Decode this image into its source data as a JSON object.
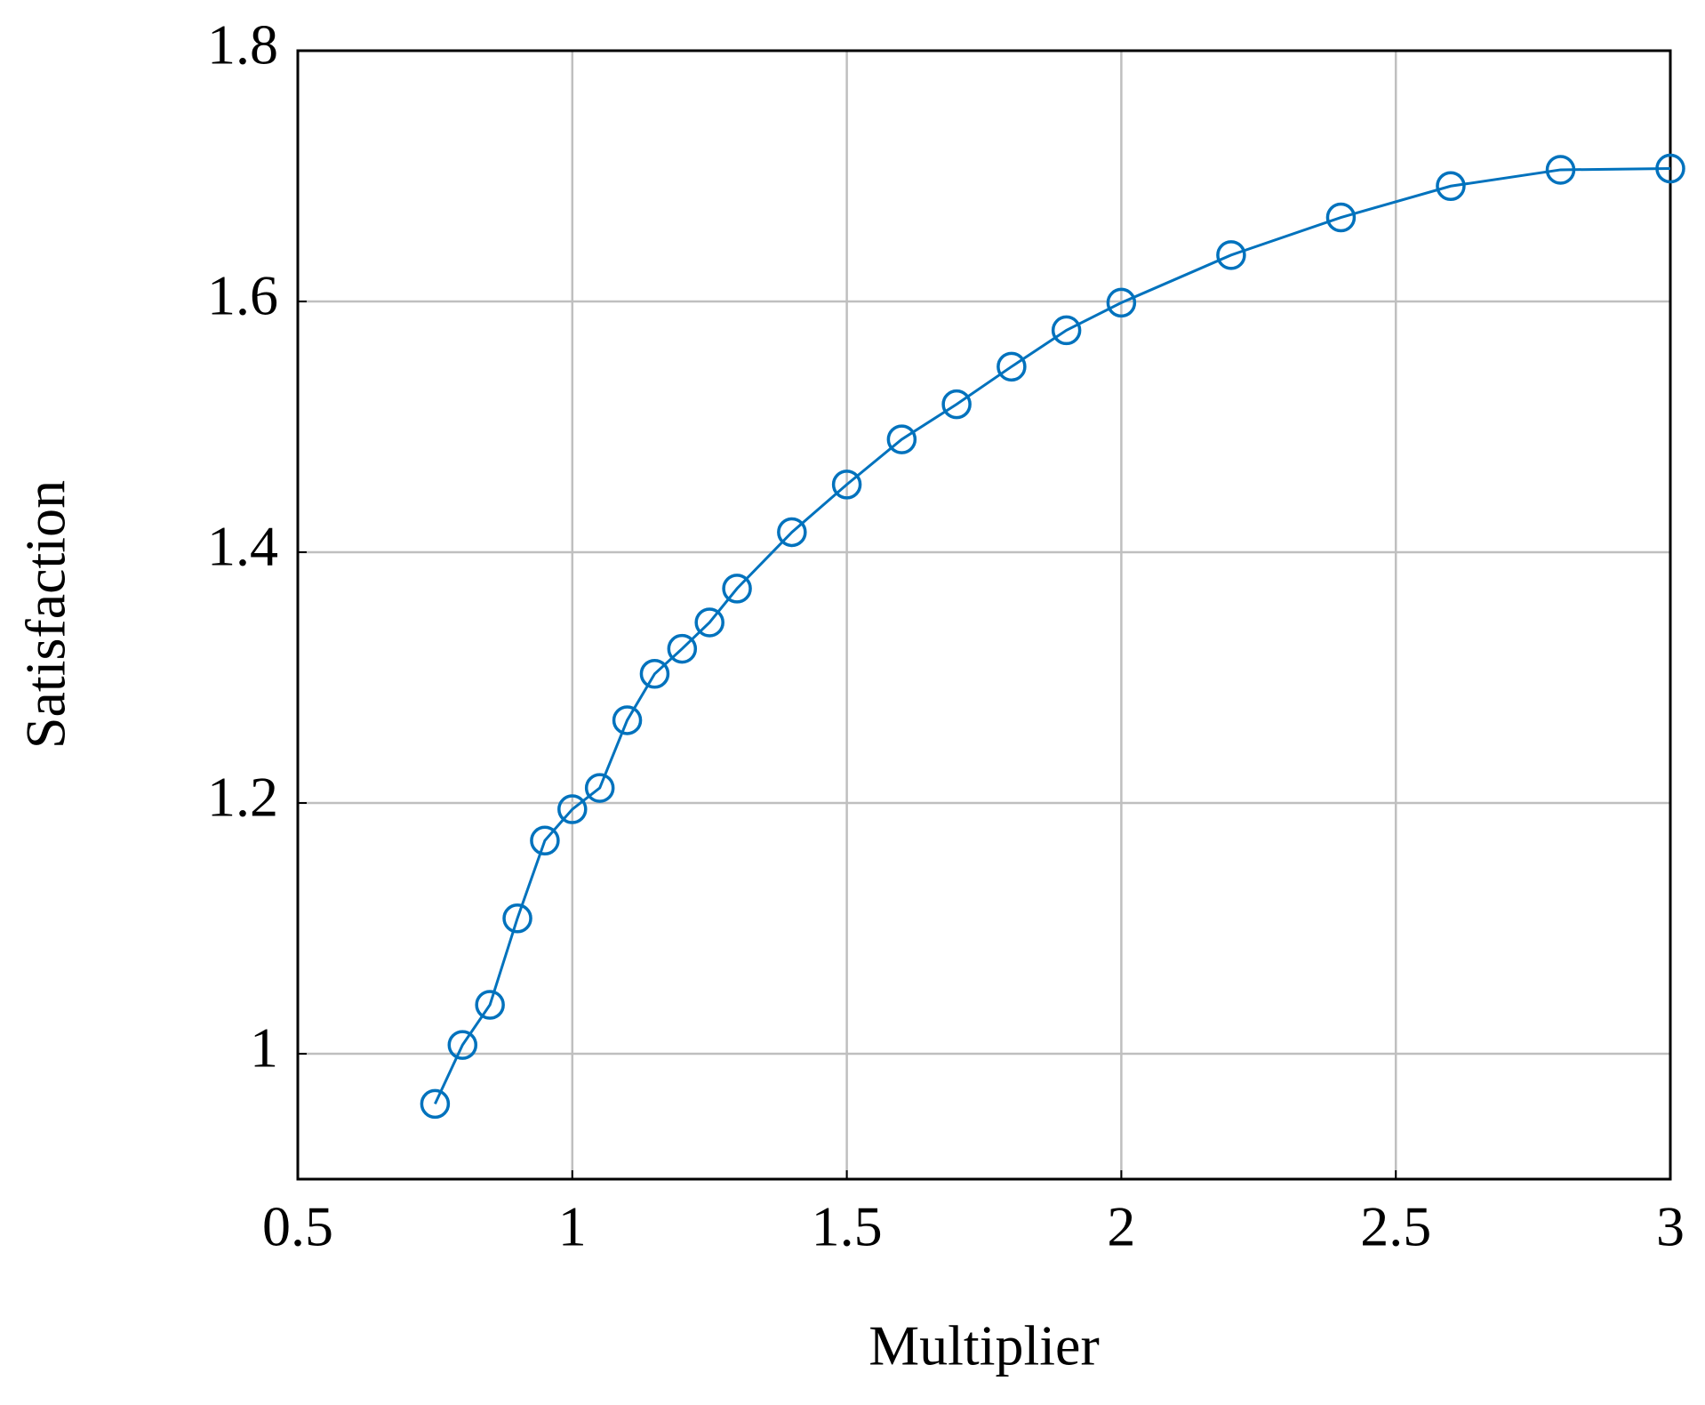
{
  "chart_data": {
    "type": "line",
    "xlabel": "Multiplier",
    "ylabel": "Satisfaction",
    "x": [
      0.75,
      0.8,
      0.85,
      0.9,
      0.95,
      1.0,
      1.05,
      1.1,
      1.15,
      1.2,
      1.25,
      1.3,
      1.4,
      1.5,
      1.6,
      1.7,
      1.8,
      1.9,
      2.0,
      2.2,
      2.4,
      2.6,
      2.8,
      3.0
    ],
    "series": [
      {
        "color": "#0072bd",
        "values": [
          0.96,
          1.007,
          1.039,
          1.108,
          1.17,
          1.195,
          1.212,
          1.266,
          1.303,
          1.323,
          1.344,
          1.371,
          1.416,
          1.454,
          1.49,
          1.518,
          1.548,
          1.577,
          1.599,
          1.637,
          1.667,
          1.692,
          1.705,
          1.706
        ]
      }
    ],
    "xlim": [
      0.5,
      3
    ],
    "xticks": [
      0.5,
      1,
      1.5,
      2,
      2.5,
      3
    ],
    "ylim": [
      0.9,
      1.8
    ],
    "yticks": [
      1,
      1.2,
      1.4,
      1.6,
      1.8
    ],
    "grid": true
  }
}
